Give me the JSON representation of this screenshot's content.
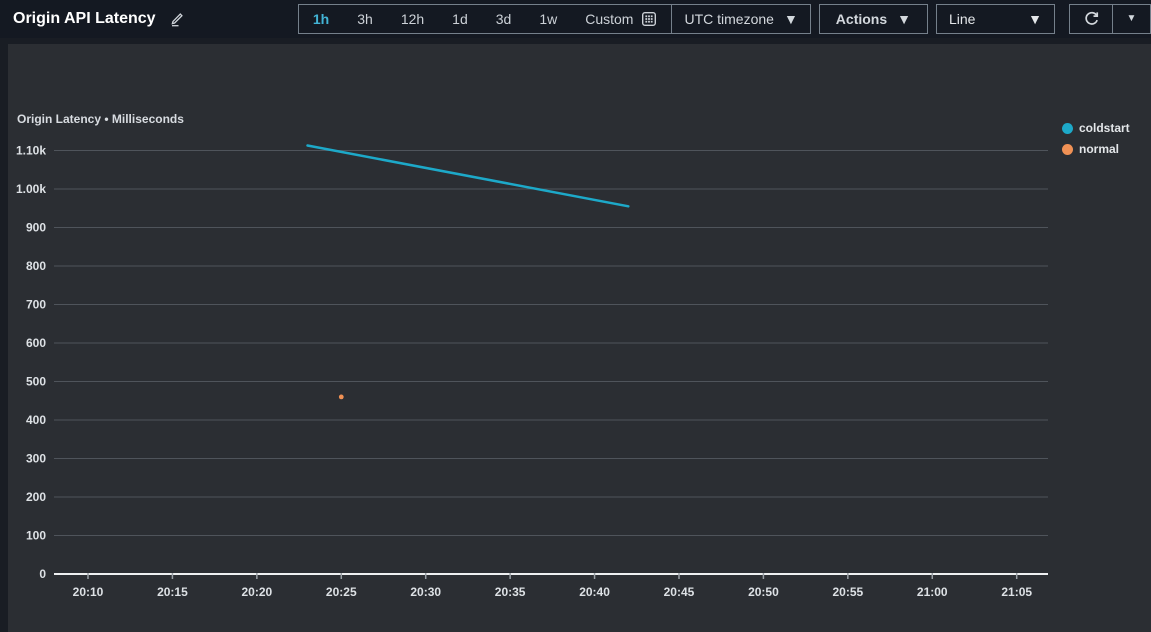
{
  "header": {
    "title": "Origin API Latency"
  },
  "toolbar": {
    "time_ranges": [
      {
        "label": "1h",
        "selected": true
      },
      {
        "label": "3h",
        "selected": false
      },
      {
        "label": "12h",
        "selected": false
      },
      {
        "label": "1d",
        "selected": false
      },
      {
        "label": "3d",
        "selected": false
      },
      {
        "label": "1w",
        "selected": false
      }
    ],
    "custom_label": "Custom",
    "timezone_label": "UTC timezone",
    "actions_label": "Actions",
    "chart_type": "Line"
  },
  "colors": {
    "topbar_bg": "#141922",
    "panel_bg": "#2b2e33",
    "accent_blue": "#42b4d6",
    "coldstart": "#1ba4c4",
    "normal": "#f09155",
    "gridline": "#4f545b",
    "axis_line": "#eef0f2",
    "axis_text": "#dde1e5"
  },
  "chart_data": {
    "type": "line",
    "title": "Origin Latency • Milliseconds",
    "xlabel": "",
    "ylabel": "Milliseconds",
    "ylim": [
      0,
      1100
    ],
    "grid": true,
    "legend_position": "right",
    "x_ticks": [
      "20:10",
      "20:15",
      "20:20",
      "20:25",
      "20:30",
      "20:35",
      "20:40",
      "20:45",
      "20:50",
      "20:55",
      "21:00",
      "21:05"
    ],
    "y_ticks": [
      {
        "label": "0",
        "value": 0
      },
      {
        "label": "100",
        "value": 100
      },
      {
        "label": "200",
        "value": 200
      },
      {
        "label": "300",
        "value": 300
      },
      {
        "label": "400",
        "value": 400
      },
      {
        "label": "500",
        "value": 500
      },
      {
        "label": "600",
        "value": 600
      },
      {
        "label": "700",
        "value": 700
      },
      {
        "label": "800",
        "value": 800
      },
      {
        "label": "900",
        "value": 900
      },
      {
        "label": "1.00k",
        "value": 1000
      },
      {
        "label": "1.10k",
        "value": 1100
      }
    ],
    "series": [
      {
        "name": "coldstart",
        "type": "line",
        "color": "#1da9c9",
        "points": [
          {
            "x": "20:23",
            "y": 1113
          },
          {
            "x": "20:42",
            "y": 955
          }
        ]
      },
      {
        "name": "normal",
        "type": "scatter",
        "color": "#f09155",
        "points": [
          {
            "x": "20:25",
            "y": 460
          }
        ]
      }
    ]
  }
}
